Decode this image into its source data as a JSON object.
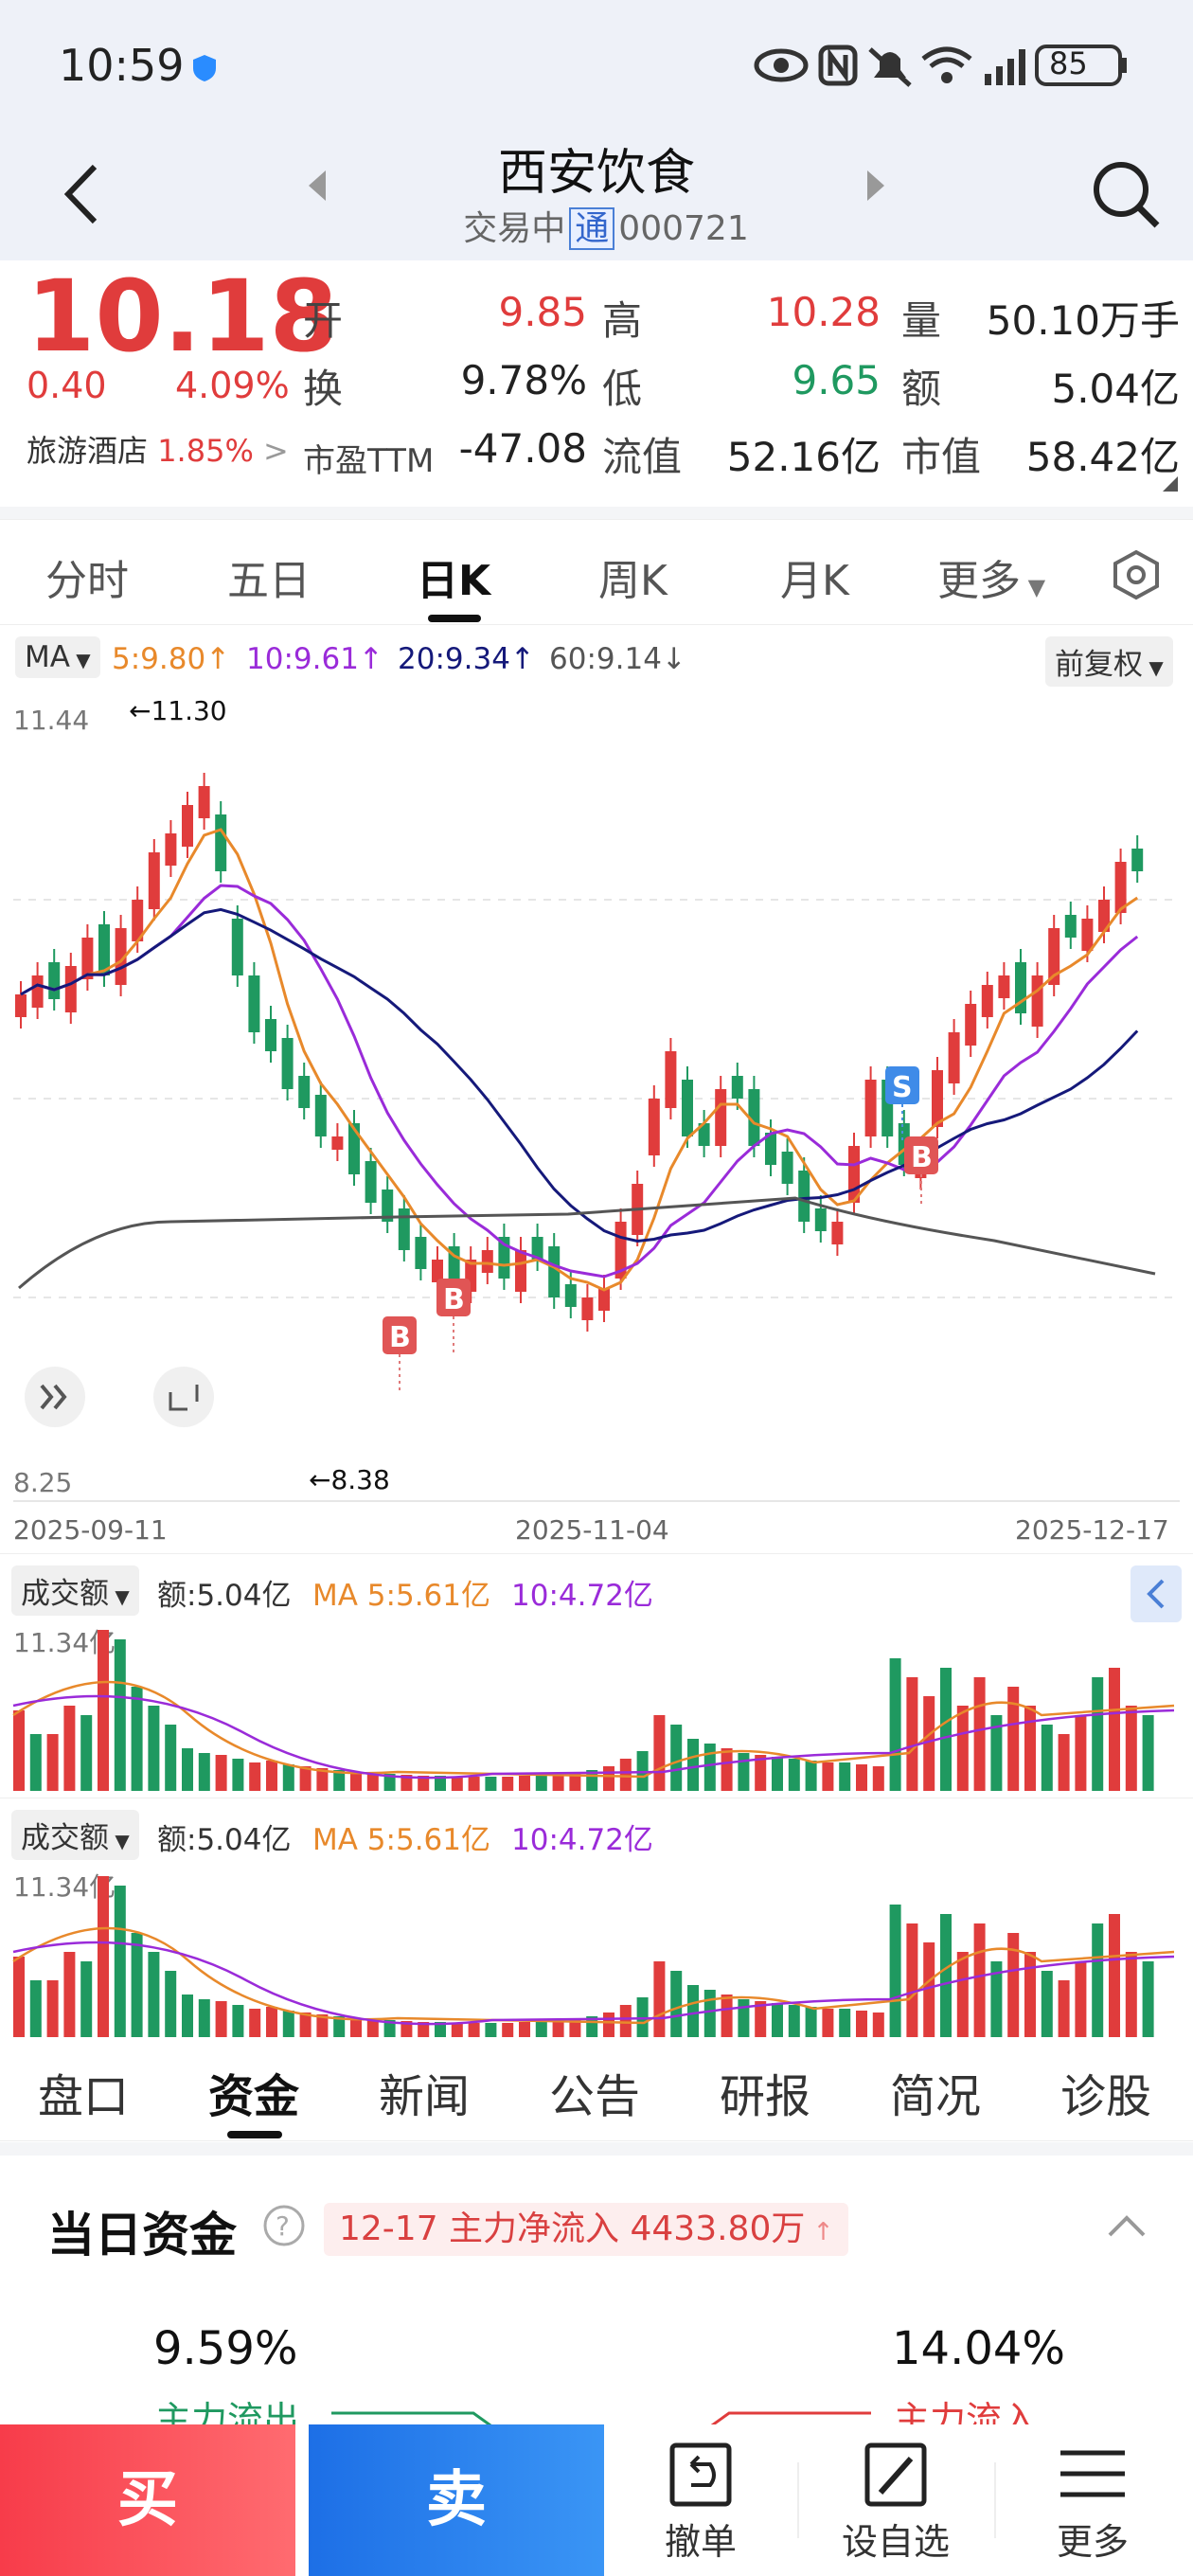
{
  "status": {
    "time": "10:59",
    "battery": "85"
  },
  "header": {
    "stock_name": "西安饮食",
    "status": "交易中",
    "badge": "通",
    "code": "000721"
  },
  "quote": {
    "price": "10.18",
    "change": "0.40",
    "change_pct": "4.09%",
    "sector": "旅游酒店",
    "sector_pct": "1.85%",
    "open_label": "开",
    "open": "9.85",
    "high_label": "高",
    "high": "10.28",
    "vol_label": "量",
    "vol": "50.10万手",
    "turnover_label": "换",
    "turnover": "9.78%",
    "low_label": "低",
    "low": "9.65",
    "amount_label": "额",
    "amount": "5.04亿",
    "pe_label": "市盈TTM",
    "pe": "-47.08",
    "float_label": "流值",
    "float_cap": "52.16亿",
    "mktcap_label": "市值",
    "mktcap": "58.42亿"
  },
  "period_tabs": [
    "分时",
    "五日",
    "日K",
    "周K",
    "月K",
    "更多"
  ],
  "ma_legend": {
    "chip": "MA",
    "ma5": "5:9.80↑",
    "ma10": "10:9.61↑",
    "ma20": "20:9.34↑",
    "ma60": "60:9.14↓",
    "adjust": "前复权"
  },
  "kline": {
    "y_top": "11.44",
    "y_bottom": "8.25",
    "max_label": "←11.30",
    "min_label": "←8.38",
    "dates": [
      "2025-09-11",
      "2025-11-04",
      "2025-12-17"
    ],
    "markers": [
      "B",
      "B",
      "S",
      "B"
    ]
  },
  "vol1": {
    "chip": "成交额",
    "amount": "额:5.04亿",
    "ma5": "MA 5:5.61亿",
    "ma10": "10:4.72亿",
    "max": "11.34亿"
  },
  "vol2": {
    "chip": "成交额",
    "amount": "额:5.04亿",
    "ma5": "MA 5:5.61亿",
    "ma10": "10:4.72亿",
    "max": "11.34亿"
  },
  "bottom_tabs": [
    "盘口",
    "资金",
    "新闻",
    "公告",
    "研报",
    "简况",
    "诊股"
  ],
  "fund": {
    "title": "当日资金",
    "banner": "12-17 主力净流入 4433.80万",
    "out_pct": "9.59%",
    "out_label": "主力流出",
    "in_pct": "14.04%",
    "in_label": "主力流入"
  },
  "actions": {
    "buy": "买",
    "sell": "卖",
    "cancel": "撤单",
    "watch": "设自选",
    "more": "更多"
  },
  "colors": {
    "up": "#e03c3c",
    "down": "#1f9960",
    "ma5": "#e8892b",
    "ma10": "#9a2bd9",
    "ma20": "#15197a",
    "ma60": "#555555"
  }
}
